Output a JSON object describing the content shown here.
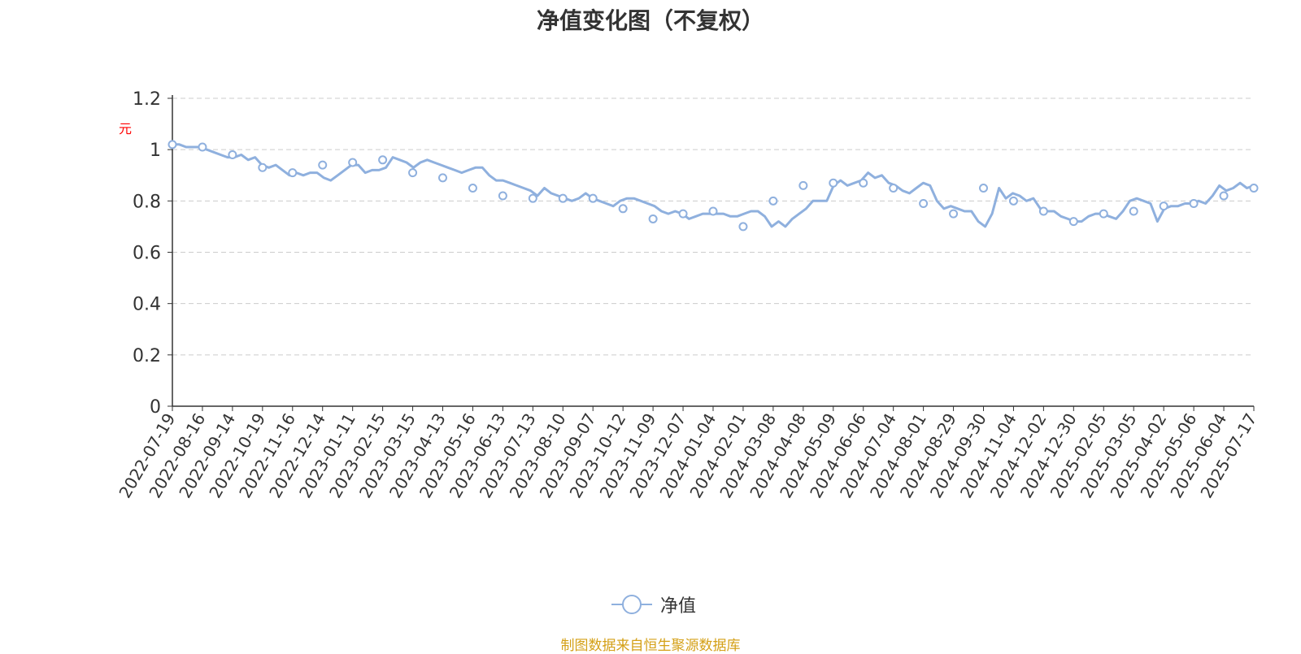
{
  "title": "净值变化图（不复权）",
  "y_unit": "元",
  "legend_label": "净值",
  "source_note": "制图数据来自恒生聚源数据库",
  "colors": {
    "line": "#8fb0de",
    "grid": "#cccccc",
    "axis": "#333333",
    "unit": "#ff0000",
    "source": "#d4a017"
  },
  "chart_data": {
    "type": "line",
    "title": "净值变化图（不复权）",
    "ylabel": "元",
    "ylim": [
      0,
      1.2
    ],
    "yticks": [
      "0",
      "0.2",
      "0.4",
      "0.6",
      "0.8",
      "1",
      "1.2"
    ],
    "grid": true,
    "legend_position": "bottom",
    "categories": [
      "2022-07-19",
      "2022-08-16",
      "2022-09-14",
      "2022-10-19",
      "2022-11-16",
      "2022-12-14",
      "2023-01-11",
      "2023-02-15",
      "2023-03-15",
      "2023-04-13",
      "2023-05-16",
      "2023-06-13",
      "2023-07-13",
      "2023-08-10",
      "2023-09-07",
      "2023-10-12",
      "2023-11-09",
      "2023-12-07",
      "2024-01-04",
      "2024-02-01",
      "2024-03-08",
      "2024-04-08",
      "2024-05-09",
      "2024-06-06",
      "2024-07-04",
      "2024-08-01",
      "2024-08-29",
      "2024-09-30",
      "2024-11-04",
      "2024-12-02",
      "2024-12-30",
      "2025-02-05",
      "2025-03-05",
      "2025-04-02",
      "2025-05-06",
      "2025-06-04",
      "2025-07-17"
    ],
    "series": [
      {
        "name": "净值",
        "values": [
          1.02,
          1.01,
          0.98,
          0.93,
          0.91,
          0.94,
          0.95,
          0.96,
          0.91,
          0.89,
          0.85,
          0.82,
          0.81,
          0.81,
          0.81,
          0.77,
          0.73,
          0.75,
          0.76,
          0.7,
          0.8,
          0.86,
          0.87,
          0.87,
          0.85,
          0.79,
          0.75,
          0.85,
          0.8,
          0.76,
          0.72,
          0.75,
          0.76,
          0.78,
          0.79,
          0.82,
          0.85
        ],
        "detail": [
          1.02,
          1.02,
          1.01,
          1.01,
          1.01,
          1.0,
          0.99,
          0.98,
          0.97,
          0.97,
          0.98,
          0.96,
          0.97,
          0.94,
          0.93,
          0.94,
          0.92,
          0.9,
          0.91,
          0.9,
          0.91,
          0.91,
          0.89,
          0.88,
          0.9,
          0.92,
          0.94,
          0.94,
          0.91,
          0.92,
          0.92,
          0.93,
          0.97,
          0.96,
          0.95,
          0.93,
          0.95,
          0.96,
          0.95,
          0.94,
          0.93,
          0.92,
          0.91,
          0.92,
          0.93,
          0.93,
          0.9,
          0.88,
          0.88,
          0.87,
          0.86,
          0.85,
          0.84,
          0.82,
          0.85,
          0.83,
          0.82,
          0.81,
          0.8,
          0.81,
          0.83,
          0.81,
          0.8,
          0.79,
          0.78,
          0.8,
          0.81,
          0.81,
          0.8,
          0.79,
          0.78,
          0.76,
          0.75,
          0.76,
          0.75,
          0.73,
          0.74,
          0.75,
          0.75,
          0.75,
          0.75,
          0.74,
          0.74,
          0.75,
          0.76,
          0.76,
          0.74,
          0.7,
          0.72,
          0.7,
          0.73,
          0.75,
          0.77,
          0.8,
          0.8,
          0.8,
          0.86,
          0.88,
          0.86,
          0.87,
          0.88,
          0.91,
          0.89,
          0.9,
          0.87,
          0.86,
          0.84,
          0.83,
          0.85,
          0.87,
          0.86,
          0.8,
          0.77,
          0.78,
          0.77,
          0.76,
          0.76,
          0.72,
          0.7,
          0.75,
          0.85,
          0.81,
          0.83,
          0.82,
          0.8,
          0.81,
          0.77,
          0.76,
          0.76,
          0.74,
          0.73,
          0.72,
          0.72,
          0.74,
          0.75,
          0.75,
          0.74,
          0.73,
          0.76,
          0.8,
          0.81,
          0.8,
          0.79,
          0.72,
          0.77,
          0.78,
          0.78,
          0.79,
          0.79,
          0.8,
          0.79,
          0.82,
          0.86,
          0.84,
          0.85,
          0.87,
          0.85,
          0.86
        ]
      }
    ]
  }
}
